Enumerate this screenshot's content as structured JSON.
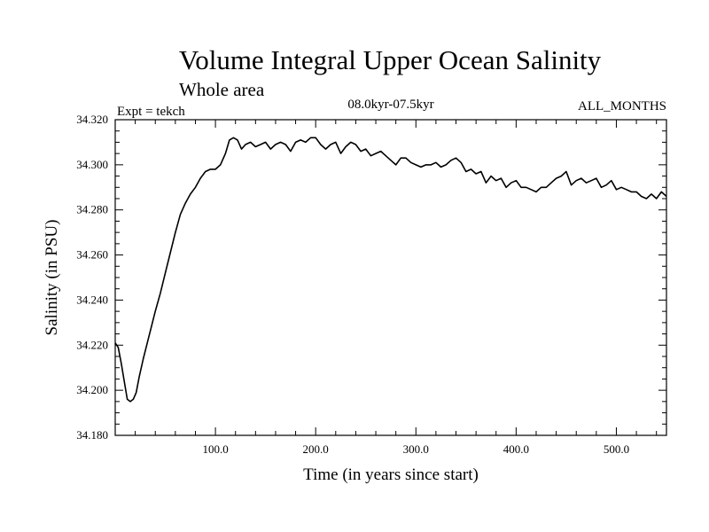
{
  "chart_data": {
    "type": "line",
    "title": "Volume Integral Upper Ocean Salinity",
    "subtitle": "Whole area",
    "experiment": "Expt = tekch",
    "period": "08.0kyr-07.5kyr",
    "months": "ALL_MONTHS",
    "xlabel": "Time (in years since start)",
    "ylabel": "Salinity (in PSU)",
    "xlim": [
      0,
      550
    ],
    "ylim": [
      34.18,
      34.32
    ],
    "x_ticks": [
      100,
      200,
      300,
      400,
      500
    ],
    "x_tick_labels": [
      "100.0",
      "200.0",
      "300.0",
      "400.0",
      "500.0"
    ],
    "y_ticks": [
      34.18,
      34.2,
      34.22,
      34.24,
      34.26,
      34.28,
      34.3,
      34.32
    ],
    "y_tick_labels": [
      "34.180",
      "34.200",
      "34.220",
      "34.240",
      "34.260",
      "34.280",
      "34.300",
      "34.320"
    ],
    "line_color": "#000000",
    "series": [
      {
        "name": "Salinity",
        "x": [
          0,
          3,
          6,
          9,
          12,
          15,
          18,
          21,
          24,
          28,
          32,
          36,
          40,
          45,
          50,
          55,
          60,
          65,
          70,
          75,
          80,
          85,
          90,
          95,
          100,
          105,
          110,
          114,
          118,
          122,
          126,
          130,
          135,
          140,
          145,
          150,
          155,
          160,
          165,
          170,
          175,
          180,
          185,
          190,
          195,
          200,
          205,
          210,
          215,
          220,
          225,
          230,
          235,
          240,
          245,
          250,
          255,
          260,
          265,
          270,
          275,
          280,
          285,
          290,
          295,
          300,
          305,
          310,
          315,
          320,
          325,
          330,
          335,
          340,
          345,
          350,
          355,
          360,
          365,
          370,
          375,
          380,
          385,
          390,
          395,
          400,
          405,
          410,
          415,
          420,
          425,
          430,
          435,
          440,
          445,
          450,
          455,
          460,
          465,
          470,
          475,
          480,
          485,
          490,
          495,
          500,
          505,
          510,
          515,
          520,
          525,
          530,
          535,
          540,
          545,
          550
        ],
        "values": [
          34.221,
          34.219,
          34.212,
          34.204,
          34.196,
          34.195,
          34.196,
          34.199,
          34.206,
          34.214,
          34.221,
          34.228,
          34.235,
          34.243,
          34.252,
          34.261,
          34.27,
          34.278,
          34.283,
          34.287,
          34.29,
          34.294,
          34.297,
          34.298,
          34.298,
          34.3,
          34.305,
          34.311,
          34.312,
          34.311,
          34.307,
          34.309,
          34.31,
          34.308,
          34.309,
          34.31,
          34.307,
          34.309,
          34.31,
          34.309,
          34.306,
          34.31,
          34.311,
          34.31,
          34.312,
          34.312,
          34.309,
          34.307,
          34.309,
          34.31,
          34.305,
          34.308,
          34.31,
          34.309,
          34.306,
          34.307,
          34.304,
          34.305,
          34.306,
          34.304,
          34.302,
          34.3,
          34.303,
          34.303,
          34.301,
          34.3,
          34.299,
          34.3,
          34.3,
          34.301,
          34.299,
          34.3,
          34.302,
          34.303,
          34.301,
          34.297,
          34.298,
          34.296,
          34.297,
          34.292,
          34.295,
          34.293,
          34.294,
          34.29,
          34.292,
          34.293,
          34.29,
          34.29,
          34.289,
          34.288,
          34.29,
          34.29,
          34.292,
          34.294,
          34.295,
          34.297,
          34.291,
          34.293,
          34.294,
          34.292,
          34.293,
          34.294,
          34.29,
          34.291,
          34.293,
          34.289,
          34.29,
          34.289,
          34.288,
          34.288,
          34.286,
          34.285,
          34.287,
          34.285,
          34.288,
          34.286
        ]
      }
    ]
  }
}
